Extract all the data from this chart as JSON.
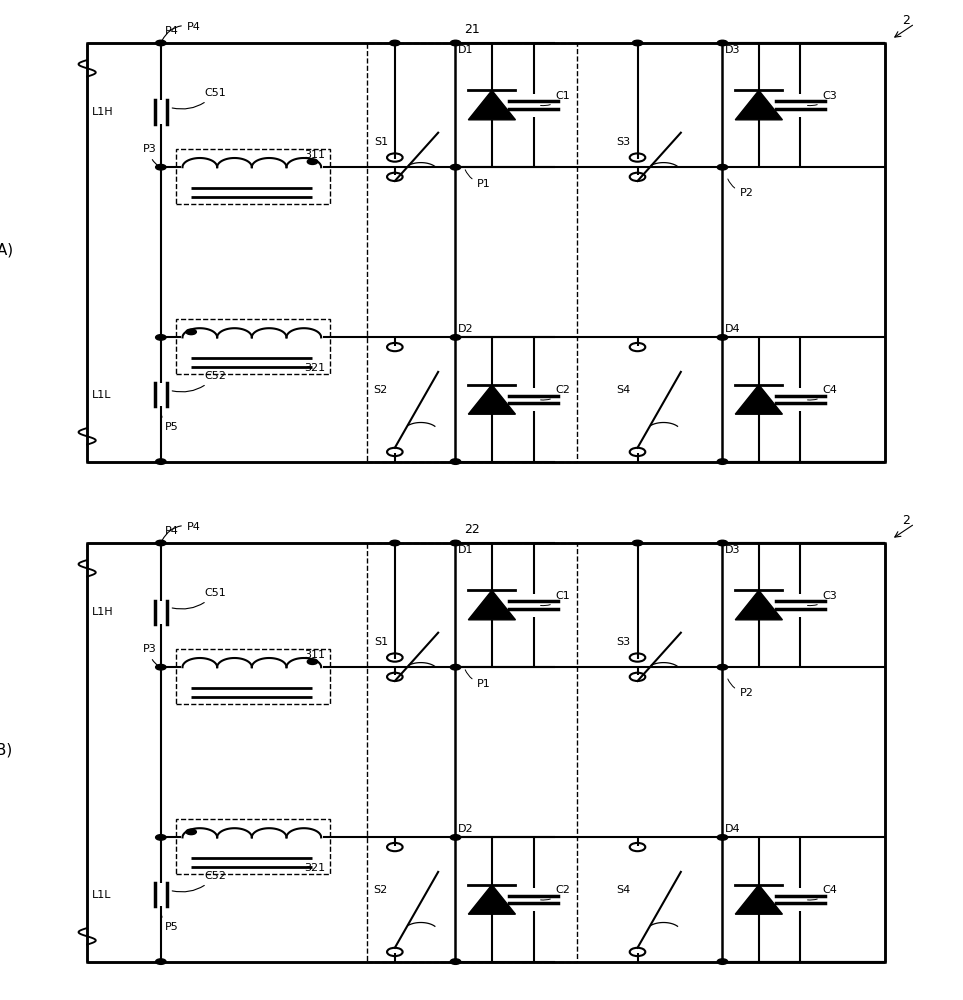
{
  "bg": "#ffffff",
  "lc": "#000000",
  "lw": 1.5,
  "panels": [
    "A",
    "B"
  ],
  "mid_labels": [
    "21",
    "22"
  ]
}
